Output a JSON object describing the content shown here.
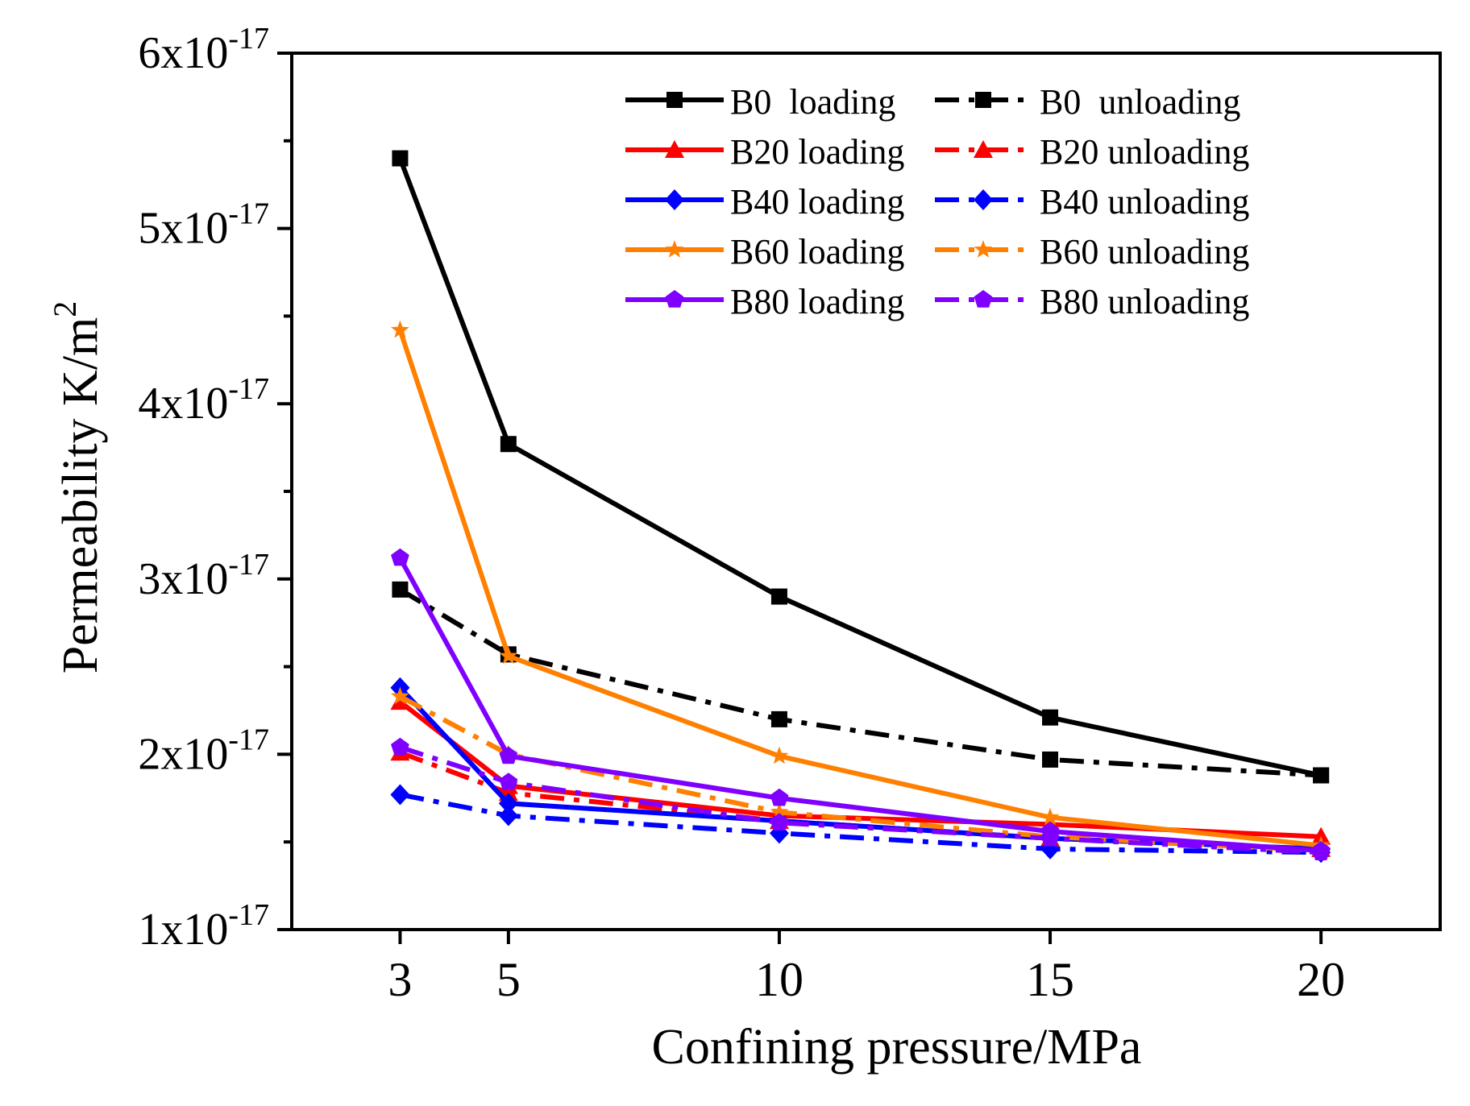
{
  "chart_data": {
    "type": "line",
    "title": "",
    "xlabel": "Confining pressure/MPa",
    "ylabel_main": "Permeability K/m",
    "ylabel_sup": "2",
    "x": [
      3,
      5,
      10,
      15,
      20
    ],
    "xlim": [
      1,
      22.2
    ],
    "ylim": [
      1e-17,
      6e-17
    ],
    "xticks": [
      {
        "value": 3,
        "label": "3"
      },
      {
        "value": 5,
        "label": "5"
      },
      {
        "value": 10,
        "label": "10"
      },
      {
        "value": 15,
        "label": "15"
      },
      {
        "value": 20,
        "label": "20"
      }
    ],
    "yticks": [
      {
        "value": 1e-17,
        "base": "1x10",
        "exp": "-17"
      },
      {
        "value": 2e-17,
        "base": "2x10",
        "exp": "-17"
      },
      {
        "value": 3e-17,
        "base": "3x10",
        "exp": "-17"
      },
      {
        "value": 4e-17,
        "base": "4x10",
        "exp": "-17"
      },
      {
        "value": 5e-17,
        "base": "5x10",
        "exp": "-17"
      },
      {
        "value": 6e-17,
        "base": "6x10",
        "exp": "-17"
      }
    ],
    "legend_position": "top-right",
    "series": [
      {
        "name": "B0  loading",
        "color": "#000000",
        "marker": "square",
        "dash": "solid",
        "values": [
          5.4e-17,
          3.77e-17,
          2.9e-17,
          2.21e-17,
          1.88e-17
        ]
      },
      {
        "name": "B0  unloading",
        "color": "#000000",
        "marker": "square",
        "dash": "dashdot",
        "values": [
          2.94e-17,
          2.57e-17,
          2.2e-17,
          1.97e-17,
          1.88e-17
        ]
      },
      {
        "name": "B20 loading",
        "color": "#ff0000",
        "marker": "triangle",
        "dash": "solid",
        "values": [
          2.3e-17,
          1.82e-17,
          1.65e-17,
          1.6e-17,
          1.53e-17
        ]
      },
      {
        "name": "B20 unloading",
        "color": "#ff0000",
        "marker": "triangle",
        "dash": "dashdot",
        "values": [
          2.01e-17,
          1.78e-17,
          1.62e-17,
          1.52e-17,
          1.46e-17
        ]
      },
      {
        "name": "B40 loading",
        "color": "#0000ff",
        "marker": "diamond",
        "dash": "solid",
        "values": [
          2.38e-17,
          1.72e-17,
          1.62e-17,
          1.52e-17,
          1.46e-17
        ]
      },
      {
        "name": "B40 unloading",
        "color": "#0000ff",
        "marker": "diamond",
        "dash": "dashdot",
        "values": [
          1.77e-17,
          1.65e-17,
          1.55e-17,
          1.46e-17,
          1.44e-17
        ]
      },
      {
        "name": "B60 loading",
        "color": "#ff8000",
        "marker": "star",
        "dash": "solid",
        "values": [
          4.42e-17,
          2.56e-17,
          1.99e-17,
          1.64e-17,
          1.48e-17
        ]
      },
      {
        "name": "B60 unloading",
        "color": "#ff8000",
        "marker": "star",
        "dash": "dashdot",
        "values": [
          2.33e-17,
          2e-17,
          1.67e-17,
          1.53e-17,
          1.45e-17
        ]
      },
      {
        "name": "B80 loading",
        "color": "#8000ff",
        "marker": "pentagon",
        "dash": "solid",
        "values": [
          3.12e-17,
          1.99e-17,
          1.75e-17,
          1.56e-17,
          1.45e-17
        ]
      },
      {
        "name": "B80 unloading",
        "color": "#8000ff",
        "marker": "pentagon",
        "dash": "dashdot",
        "values": [
          2.04e-17,
          1.84e-17,
          1.61e-17,
          1.52e-17,
          1.44e-17
        ]
      }
    ]
  }
}
